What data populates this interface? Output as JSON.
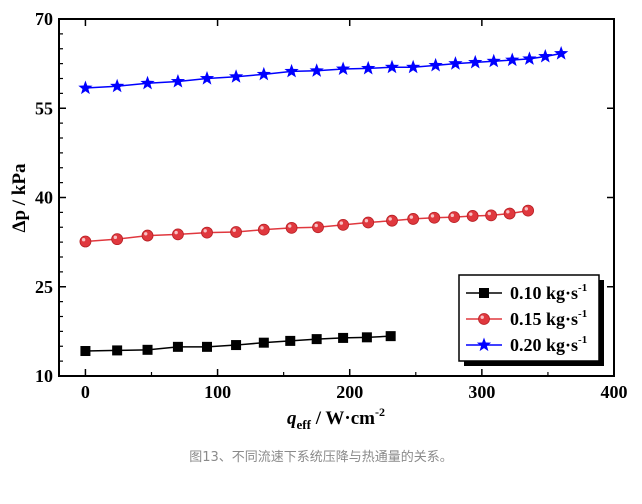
{
  "chart_data": {
    "type": "line",
    "xlabel_main": "q",
    "xlabel_sub": "eff",
    "xlabel_rest": " / W·cm",
    "xlabel_sup": "-2",
    "ylabel_main": "Δp",
    "ylabel_rest": " / kPa",
    "xlim": [
      -20,
      400
    ],
    "ylim": [
      10,
      70
    ],
    "xticks": [
      0,
      100,
      200,
      300,
      400
    ],
    "yticks": [
      10,
      25,
      40,
      55,
      70
    ],
    "grid": false,
    "legend_position": "bottom-right",
    "legend_unit": " kg·s",
    "legend_unit_sup": "-1",
    "series": [
      {
        "name": "0.10",
        "color": "#000000",
        "marker": "square",
        "x": [
          0,
          24,
          47,
          70,
          92,
          114,
          135,
          155,
          175,
          195,
          213,
          231
        ],
        "y": [
          14.2,
          14.3,
          14.4,
          14.9,
          14.9,
          15.2,
          15.6,
          15.9,
          16.2,
          16.4,
          16.5,
          16.7
        ]
      },
      {
        "name": "0.15",
        "color": "#e0383e",
        "marker": "circle",
        "x": [
          0,
          24,
          47,
          70,
          92,
          114,
          135,
          156,
          176,
          195,
          214,
          232,
          248,
          264,
          279,
          293,
          307,
          321,
          335
        ],
        "y": [
          32.6,
          33.0,
          33.6,
          33.8,
          34.1,
          34.2,
          34.6,
          34.9,
          35.0,
          35.4,
          35.8,
          36.1,
          36.4,
          36.6,
          36.7,
          36.9,
          37.0,
          37.3,
          37.8
        ]
      },
      {
        "name": "0.20",
        "color": "#0000ff",
        "marker": "star",
        "x": [
          0,
          24,
          47,
          70,
          92,
          114,
          135,
          156,
          175,
          195,
          214,
          232,
          248,
          265,
          280,
          295,
          309,
          323,
          336,
          348,
          360
        ],
        "y": [
          58.4,
          58.7,
          59.2,
          59.5,
          60.0,
          60.3,
          60.7,
          61.2,
          61.3,
          61.6,
          61.7,
          61.9,
          61.9,
          62.2,
          62.5,
          62.7,
          62.9,
          63.1,
          63.3,
          63.7,
          64.2
        ]
      }
    ]
  },
  "caption": "图13、不同流速下系统压降与热通量的关系。"
}
